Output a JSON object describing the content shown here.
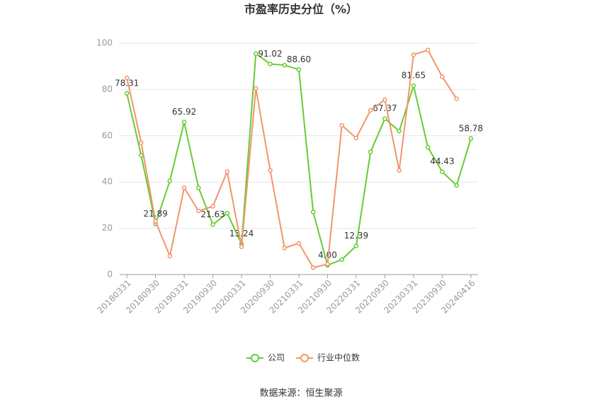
{
  "chart_data": {
    "type": "line",
    "title": "市盈率历史分位（%）",
    "source": "数据来源：恒生聚源",
    "categories": [
      "20180331",
      null,
      "20180930",
      null,
      "20190331",
      null,
      "20190930",
      null,
      "20200331",
      null,
      "20200930",
      null,
      "20210331",
      null,
      "20210930",
      null,
      "20220331",
      null,
      "20220930",
      null,
      "20230331",
      null,
      "20230930",
      null,
      "20240416"
    ],
    "series": [
      {
        "name": "公司",
        "color": "#66cc33",
        "values": [
          78.31,
          51.5,
          21.89,
          40.5,
          65.92,
          37.5,
          21.63,
          26.5,
          13.24,
          95.5,
          91.02,
          90.5,
          88.6,
          27,
          4.0,
          6.5,
          12.39,
          53,
          67.37,
          62,
          81.65,
          55,
          44.43,
          38.5,
          58.78
        ],
        "value_labels": [
          "78.31",
          null,
          "21.89",
          null,
          "65.92",
          null,
          "21.63",
          null,
          "13.24",
          null,
          "91.02",
          null,
          "88.60",
          null,
          "4.00",
          null,
          "12.39",
          null,
          "67.37",
          null,
          "81.65",
          null,
          "44.43",
          null,
          "58.78"
        ]
      },
      {
        "name": "行业中位数",
        "color": "#f2956a",
        "values": [
          85,
          57,
          23,
          8,
          37.5,
          27.5,
          29.5,
          44.5,
          12,
          80.5,
          45,
          11.5,
          13.5,
          3,
          4.5,
          64.5,
          59,
          71,
          75.5,
          45,
          95,
          97,
          85.5,
          76,
          null
        ]
      }
    ],
    "ylim": [
      0,
      100
    ],
    "yticks": [
      0,
      20,
      40,
      60,
      80,
      100
    ],
    "grid": true,
    "legend": "bottom"
  }
}
